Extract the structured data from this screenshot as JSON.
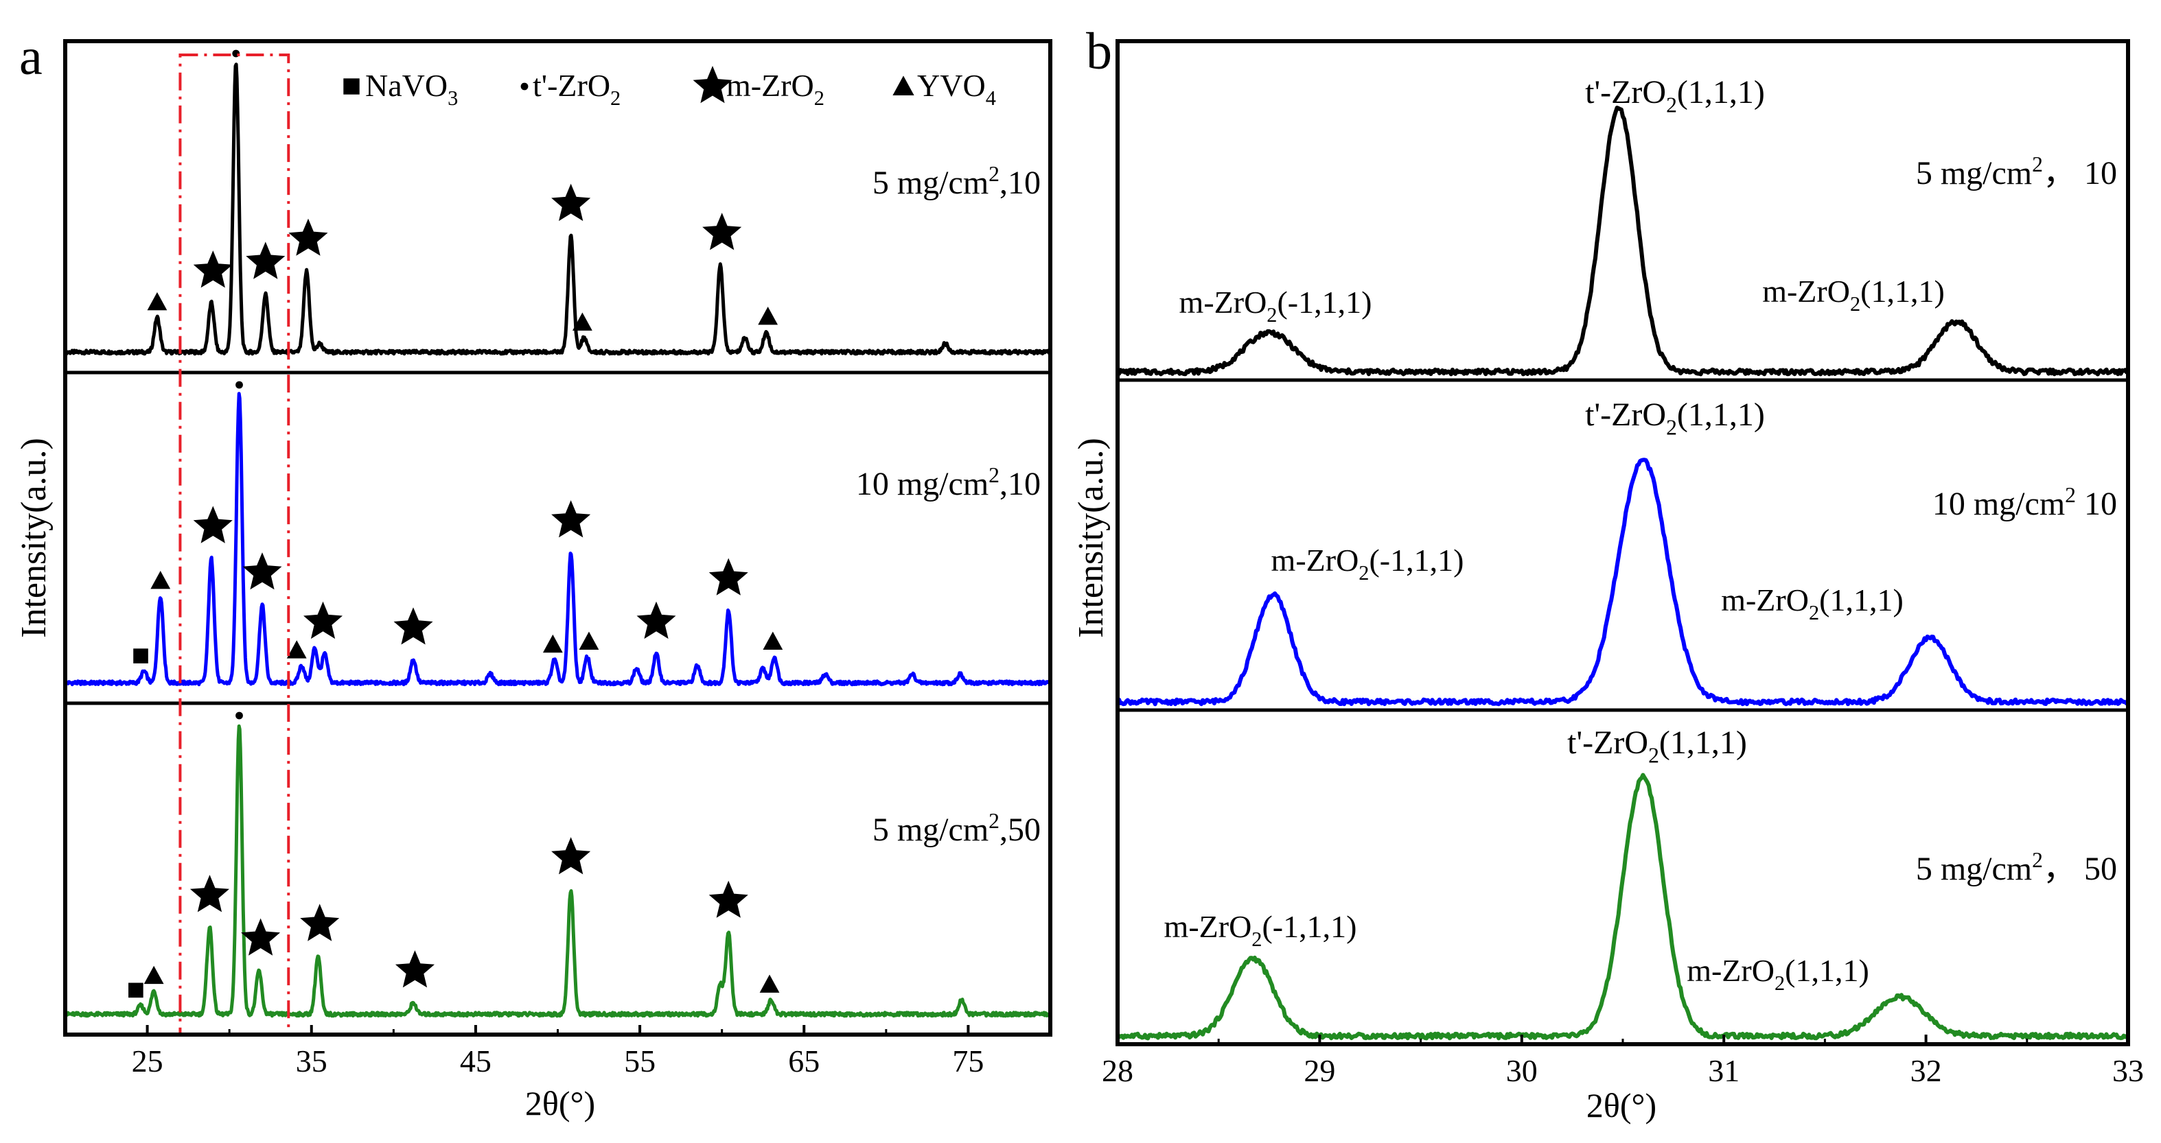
{
  "panels": [
    {
      "letter": "a",
      "xlabel": "2θ(°)",
      "ylabel": "Intensity(a.u.)",
      "xlim": [
        20,
        80
      ],
      "xticks": [
        "25",
        "35",
        "45",
        "55",
        "65",
        "75"
      ],
      "legend": [
        {
          "marker": "square",
          "text": "NaVO3"
        },
        {
          "marker": "dot",
          "text": "t'-ZrO2"
        },
        {
          "marker": "star",
          "text": "m-ZrO2"
        },
        {
          "marker": "triangle",
          "text": "YVO4"
        }
      ],
      "highlight_range": [
        27,
        33.6
      ]
    },
    {
      "letter": "b",
      "xlabel": "2θ(°)",
      "ylabel": "Intensity(a.u.)",
      "xlim": [
        28,
        33
      ],
      "xticks": [
        "28",
        "29",
        "30",
        "31",
        "32",
        "33"
      ]
    }
  ],
  "chart_data": [
    {
      "type": "line",
      "xlim": [
        20,
        80
      ],
      "stacked": true,
      "series": [
        {
          "name": "5 mg/cm2,10",
          "color": "#000000",
          "peaks": [
            [
              25.6,
              0.12
            ],
            [
              28.9,
              0.17
            ],
            [
              30.4,
              1.0
            ],
            [
              32.2,
              0.2
            ],
            [
              34.7,
              0.28
            ],
            [
              35.5,
              0.03
            ],
            [
              50.8,
              0.4
            ],
            [
              51.6,
              0.05
            ],
            [
              59.9,
              0.3
            ],
            [
              61.4,
              0.05
            ],
            [
              62.7,
              0.07
            ],
            [
              73.6,
              0.03
            ]
          ],
          "markers": [
            {
              "x": 25.6,
              "type": "triangle"
            },
            {
              "x": 29.0,
              "type": "star"
            },
            {
              "x": 30.4,
              "type": "dot"
            },
            {
              "x": 32.2,
              "type": "star"
            },
            {
              "x": 34.8,
              "type": "star"
            },
            {
              "x": 50.8,
              "type": "star"
            },
            {
              "x": 51.5,
              "type": "triangle"
            },
            {
              "x": 60.0,
              "type": "star"
            },
            {
              "x": 62.8,
              "type": "triangle"
            }
          ]
        },
        {
          "name": "10 mg/cm2,10",
          "color": "#0000ff",
          "peaks": [
            [
              24.8,
              0.04
            ],
            [
              25.8,
              0.3
            ],
            [
              28.9,
              0.43
            ],
            [
              30.6,
              1.0
            ],
            [
              32.0,
              0.27
            ],
            [
              34.4,
              0.06
            ],
            [
              35.2,
              0.12
            ],
            [
              35.8,
              0.1
            ],
            [
              41.2,
              0.08
            ],
            [
              45.9,
              0.03
            ],
            [
              49.8,
              0.08
            ],
            [
              50.8,
              0.45
            ],
            [
              51.8,
              0.09
            ],
            [
              54.8,
              0.05
            ],
            [
              56.0,
              0.1
            ],
            [
              58.5,
              0.06
            ],
            [
              60.4,
              0.25
            ],
            [
              62.5,
              0.05
            ],
            [
              63.2,
              0.09
            ],
            [
              66.3,
              0.03
            ],
            [
              71.6,
              0.03
            ],
            [
              74.5,
              0.03
            ]
          ],
          "markers": [
            {
              "x": 24.6,
              "type": "square"
            },
            {
              "x": 25.8,
              "type": "triangle"
            },
            {
              "x": 29.0,
              "type": "star"
            },
            {
              "x": 30.6,
              "type": "dot"
            },
            {
              "x": 32.0,
              "type": "star"
            },
            {
              "x": 34.1,
              "type": "triangle"
            },
            {
              "x": 35.7,
              "type": "star"
            },
            {
              "x": 41.2,
              "type": "star"
            },
            {
              "x": 49.7,
              "type": "triangle"
            },
            {
              "x": 50.8,
              "type": "star"
            },
            {
              "x": 51.9,
              "type": "triangle"
            },
            {
              "x": 56.0,
              "type": "star"
            },
            {
              "x": 60.4,
              "type": "star"
            },
            {
              "x": 63.1,
              "type": "triangle"
            }
          ]
        },
        {
          "name": "5 mg/cm2,50",
          "color": "#228b22",
          "peaks": [
            [
              24.6,
              0.03
            ],
            [
              25.4,
              0.08
            ],
            [
              28.8,
              0.3
            ],
            [
              30.6,
              1.0
            ],
            [
              31.8,
              0.15
            ],
            [
              35.4,
              0.2
            ],
            [
              41.2,
              0.04
            ],
            [
              50.8,
              0.43
            ],
            [
              59.9,
              0.1
            ],
            [
              60.4,
              0.28
            ],
            [
              63.0,
              0.05
            ],
            [
              74.6,
              0.05
            ]
          ],
          "markers": [
            {
              "x": 24.3,
              "type": "square"
            },
            {
              "x": 25.4,
              "type": "triangle"
            },
            {
              "x": 28.8,
              "type": "star"
            },
            {
              "x": 30.6,
              "type": "dot"
            },
            {
              "x": 31.9,
              "type": "star"
            },
            {
              "x": 35.5,
              "type": "star"
            },
            {
              "x": 41.3,
              "type": "star"
            },
            {
              "x": 50.8,
              "type": "star"
            },
            {
              "x": 60.4,
              "type": "star"
            },
            {
              "x": 62.9,
              "type": "triangle"
            }
          ]
        }
      ]
    },
    {
      "type": "line",
      "xlim": [
        28,
        33
      ],
      "stacked": true,
      "series": [
        {
          "name": "5 mg/cm2， 10",
          "color": "#000000",
          "peaks": [
            [
              28.75,
              0.15,
              0.12
            ],
            [
              30.48,
              1.0,
              0.09
            ],
            [
              32.15,
              0.19,
              0.1
            ]
          ],
          "annotations": {
            "main": "t'-ZrO2(1,1,1)",
            "left": "m-ZrO2(-1,1,1)",
            "right": "m-ZrO2(1,1,1)"
          }
        },
        {
          "name": "10 mg/cm2 10",
          "color": "#0000ff",
          "peaks": [
            [
              28.77,
              0.42,
              0.09
            ],
            [
              30.6,
              0.95,
              0.12
            ],
            [
              32.02,
              0.25,
              0.1
            ]
          ],
          "annotations": {
            "main": "t'-ZrO2(1,1,1)",
            "left": "m-ZrO2(-1,1,1)",
            "right": "m-ZrO2(1,1,1)"
          }
        },
        {
          "name": "5 mg/cm2， 50",
          "color": "#228b22",
          "peaks": [
            [
              28.67,
              0.3,
              0.1
            ],
            [
              30.6,
              1.0,
              0.1
            ],
            [
              31.87,
              0.15,
              0.12
            ]
          ],
          "annotations": {
            "main": "t'-ZrO2(1,1,1)",
            "left": "m-ZrO2(-1,1,1)",
            "right": "m-ZrO2(1,1,1)"
          }
        }
      ]
    }
  ]
}
